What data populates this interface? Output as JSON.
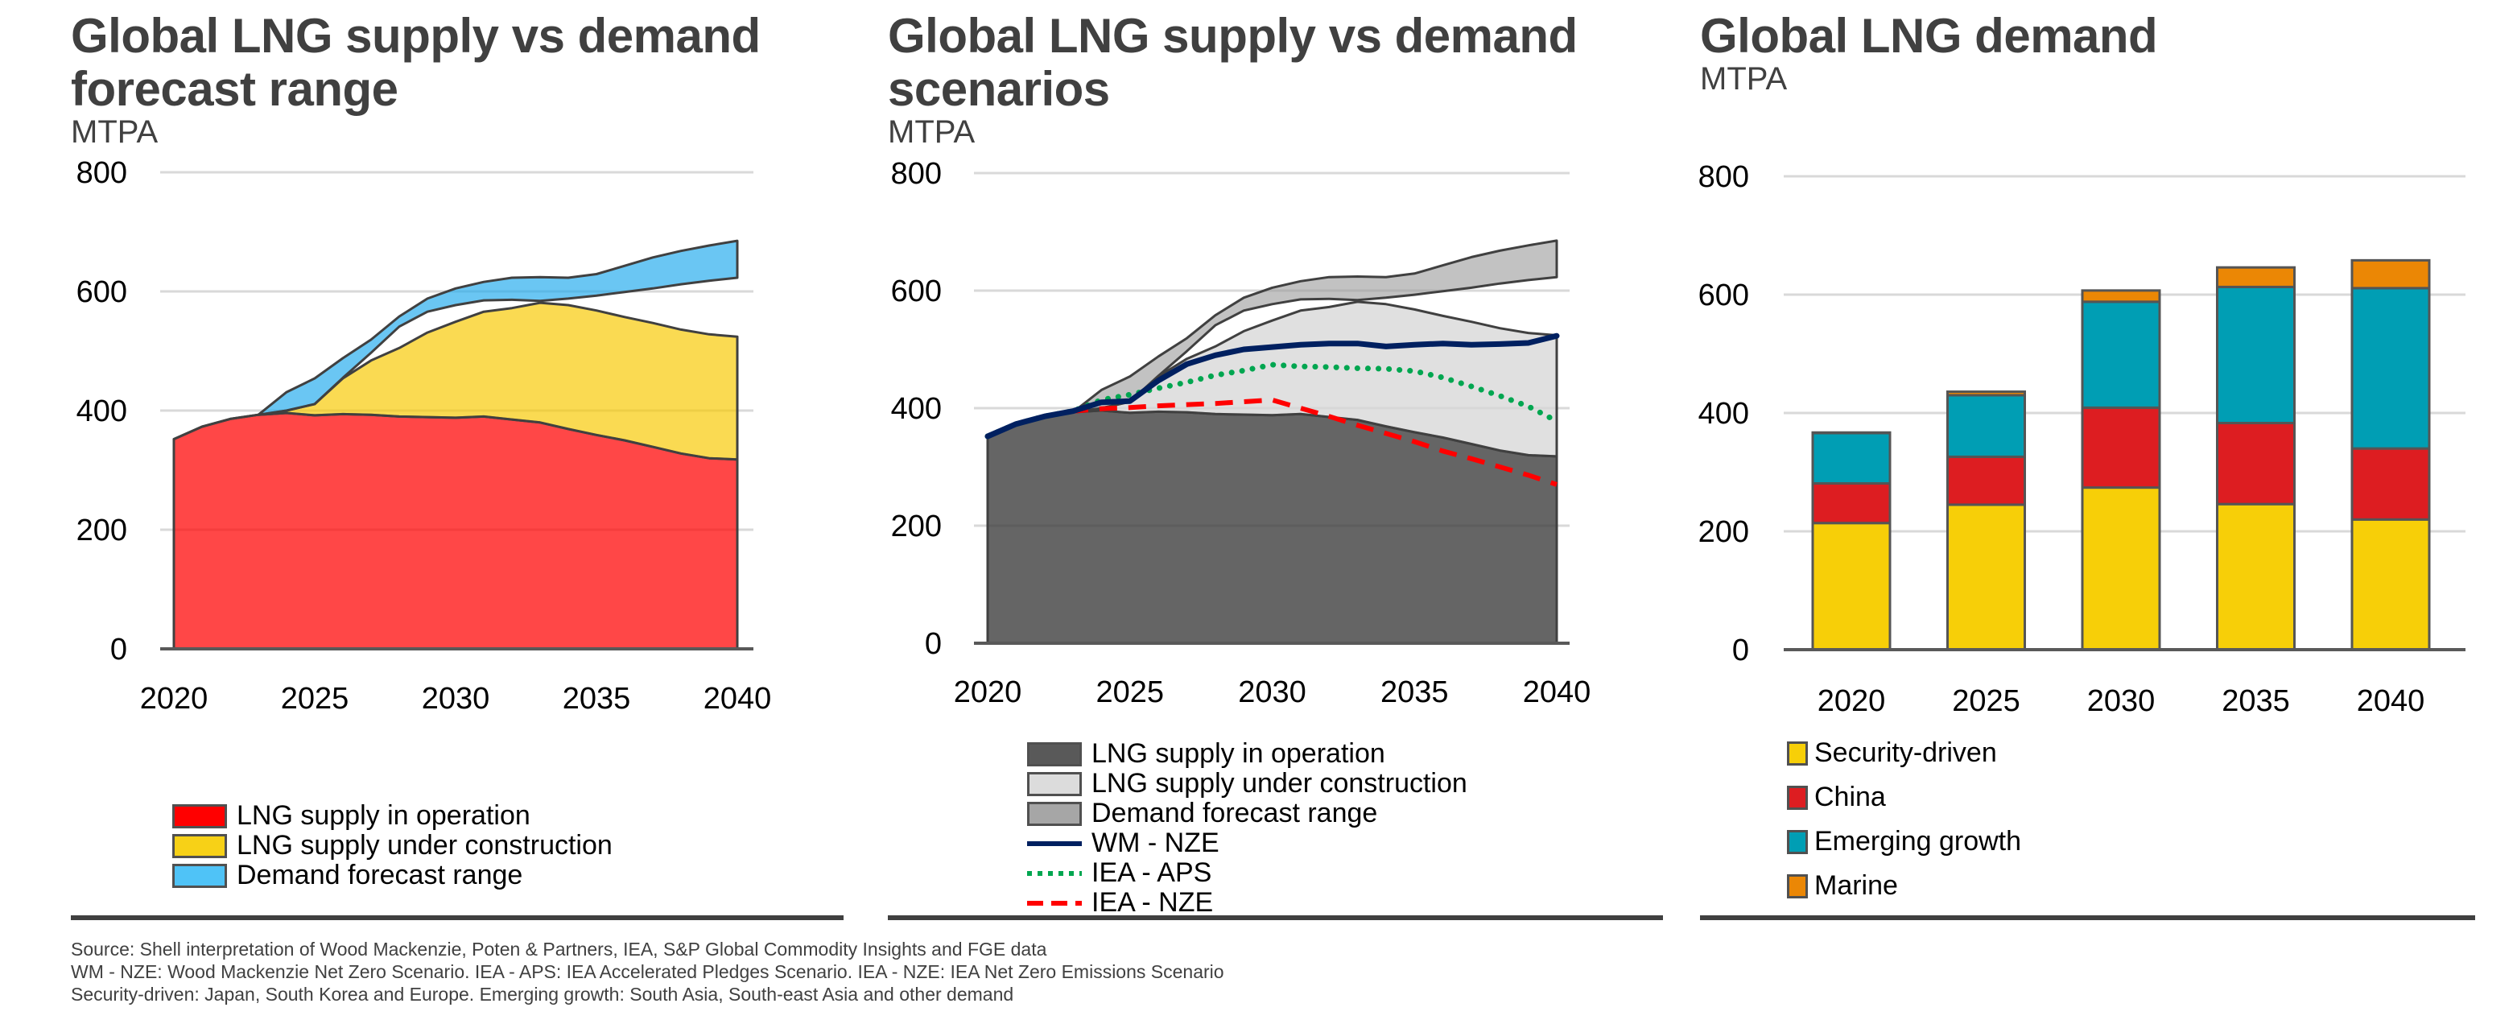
{
  "panels": [
    {
      "title": "Global LNG supply vs demand\nforecast range",
      "unit": "MTPA",
      "legend": [
        {
          "label": "LNG supply in operation",
          "color": "#ff0000"
        },
        {
          "label": "LNG supply under construction",
          "color": "#f7d117"
        },
        {
          "label": "Demand forecast range",
          "color": "#4fc3f7"
        }
      ]
    },
    {
      "title": "Global LNG supply vs demand\nscenarios",
      "unit": "MTPA",
      "legend": [
        {
          "label": "LNG supply in operation",
          "color": "#595959",
          "kind": "area"
        },
        {
          "label": "LNG supply under construction",
          "color": "#dcdcdc",
          "kind": "area"
        },
        {
          "label": "Demand forecast range",
          "color": "#a6a6a6",
          "kind": "area"
        },
        {
          "label": "WM - NZE",
          "color": "#002060",
          "kind": "solid"
        },
        {
          "label": "IEA - APS",
          "color": "#00a650",
          "kind": "dotted"
        },
        {
          "label": "IEA - NZE",
          "color": "#ff0000",
          "kind": "dashed"
        }
      ]
    },
    {
      "title": "Global LNG demand",
      "unit": "MTPA",
      "legend": [
        {
          "label": "Security-driven",
          "color": "#f7cf08"
        },
        {
          "label": "China",
          "color": "#dd1d21"
        },
        {
          "label": "Emerging growth",
          "color": "#009eb4"
        },
        {
          "label": "Marine",
          "color": "#eb8705"
        }
      ]
    }
  ],
  "footer": [
    "Source: Shell interpretation of Wood Mackenzie, Poten & Partners, IEA, S&P Global Commodity Insights and FGE data",
    "WM - NZE: Wood Mackenzie Net Zero Scenario. IEA - APS: IEA Accelerated Pledges Scenario. IEA - NZE: IEA Net Zero Emissions Scenario",
    "Security-driven: Japan, South Korea and Europe. Emerging growth: South Asia, South-east Asia and other demand"
  ],
  "chart_data": [
    {
      "type": "area",
      "title": "Global LNG supply vs demand forecast range",
      "ylabel": "MTPA",
      "xlabel": "",
      "ylim": [
        0,
        800
      ],
      "yticks": [
        0,
        200,
        400,
        600,
        800
      ],
      "xticks": [
        2020,
        2025,
        2030,
        2035,
        2040
      ],
      "xlim": [
        2020,
        2040
      ],
      "grid": true,
      "legend_position": "bottom-left",
      "x": [
        2020,
        2021,
        2022,
        2023,
        2024,
        2025,
        2026,
        2027,
        2028,
        2029,
        2030,
        2031,
        2032,
        2033,
        2034,
        2035,
        2036,
        2037,
        2038,
        2039,
        2040
      ],
      "series": [
        {
          "name": "LNG supply in operation",
          "kind": "stack-base",
          "values": [
            352,
            373,
            386,
            393,
            396,
            392,
            394,
            393,
            390,
            389,
            388,
            390,
            385,
            380,
            369,
            359,
            350,
            339,
            328,
            320,
            318
          ]
        },
        {
          "name": "LNG supply under construction",
          "kind": "stack-top-total",
          "values": [
            352,
            373,
            386,
            393,
            400,
            411,
            454,
            484,
            505,
            531,
            549,
            566,
            572,
            581,
            577,
            568,
            557,
            547,
            536,
            528,
            524
          ]
        },
        {
          "name": "Demand forecast range (low)",
          "kind": "band-low",
          "values": [
            null,
            null,
            null,
            393,
            400,
            411,
            455,
            497,
            541,
            566,
            577,
            585,
            586,
            584,
            588,
            593,
            599,
            605,
            612,
            618,
            623
          ]
        },
        {
          "name": "Demand forecast range (high)",
          "kind": "band-high",
          "values": [
            null,
            null,
            null,
            393,
            431,
            454,
            488,
            519,
            558,
            588,
            605,
            616,
            623,
            624,
            623,
            629,
            643,
            657,
            668,
            677,
            685
          ]
        }
      ]
    },
    {
      "type": "area",
      "title": "Global LNG supply vs demand scenarios",
      "ylabel": "MTPA",
      "xlabel": "",
      "ylim": [
        0,
        800
      ],
      "yticks": [
        0,
        200,
        400,
        600,
        800
      ],
      "xticks": [
        2020,
        2025,
        2030,
        2035,
        2040
      ],
      "xlim": [
        2020,
        2040
      ],
      "grid": true,
      "legend_position": "bottom",
      "x": [
        2020,
        2021,
        2022,
        2023,
        2024,
        2025,
        2026,
        2027,
        2028,
        2029,
        2030,
        2031,
        2032,
        2033,
        2034,
        2035,
        2036,
        2037,
        2038,
        2039,
        2040
      ],
      "series": [
        {
          "name": "LNG supply in operation",
          "kind": "stack-base",
          "values": [
            352,
            373,
            386,
            393,
            396,
            392,
            394,
            393,
            390,
            389,
            388,
            390,
            385,
            380,
            369,
            359,
            350,
            339,
            328,
            320,
            318
          ]
        },
        {
          "name": "LNG supply under construction",
          "kind": "stack-top-total",
          "values": [
            352,
            373,
            386,
            393,
            400,
            411,
            454,
            484,
            505,
            531,
            549,
            566,
            572,
            581,
            577,
            568,
            557,
            547,
            536,
            528,
            524
          ]
        },
        {
          "name": "Demand forecast range (low)",
          "kind": "band-low",
          "values": [
            null,
            null,
            null,
            393,
            400,
            411,
            455,
            497,
            541,
            566,
            577,
            585,
            586,
            584,
            588,
            593,
            599,
            605,
            612,
            618,
            623
          ]
        },
        {
          "name": "Demand forecast range (high)",
          "kind": "band-high",
          "values": [
            null,
            null,
            null,
            393,
            431,
            454,
            488,
            519,
            558,
            588,
            605,
            616,
            623,
            624,
            623,
            629,
            643,
            657,
            668,
            677,
            685
          ]
        },
        {
          "name": "WM - NZE",
          "kind": "line",
          "values": [
            352,
            373,
            386,
            395,
            410,
            412,
            447,
            475,
            490,
            500,
            504,
            508,
            510,
            510,
            505,
            508,
            510,
            508,
            509,
            511,
            523
          ]
        },
        {
          "name": "IEA - APS",
          "kind": "line",
          "values": [
            352,
            373,
            386,
            395,
            414,
            423,
            434,
            444,
            456,
            464,
            474,
            471,
            470,
            468,
            467,
            463,
            452,
            437,
            421,
            403,
            378
          ]
        },
        {
          "name": "IEA - NZE",
          "kind": "line",
          "values": [
            352,
            373,
            386,
            395,
            399,
            401,
            404,
            406,
            408,
            411,
            414,
            400,
            386,
            371,
            357,
            343,
            327,
            314,
            300,
            286,
            270
          ]
        }
      ]
    },
    {
      "type": "bar",
      "stacked": true,
      "title": "Global LNG demand",
      "ylabel": "MTPA",
      "xlabel": "",
      "ylim": [
        0,
        800
      ],
      "yticks": [
        0,
        200,
        400,
        600,
        800
      ],
      "grid": true,
      "legend_position": "bottom-left",
      "categories": [
        "2020",
        "2025",
        "2030",
        "2035",
        "2040"
      ],
      "series": [
        {
          "name": "Security-driven",
          "values": [
            214,
            245,
            274,
            246,
            220
          ]
        },
        {
          "name": "China",
          "values": [
            67,
            81,
            135,
            137,
            120
          ]
        },
        {
          "name": "Emerging growth",
          "values": [
            85,
            104,
            179,
            230,
            271
          ]
        },
        {
          "name": "Marine",
          "values": [
            1,
            6,
            19,
            33,
            47
          ]
        }
      ]
    }
  ]
}
